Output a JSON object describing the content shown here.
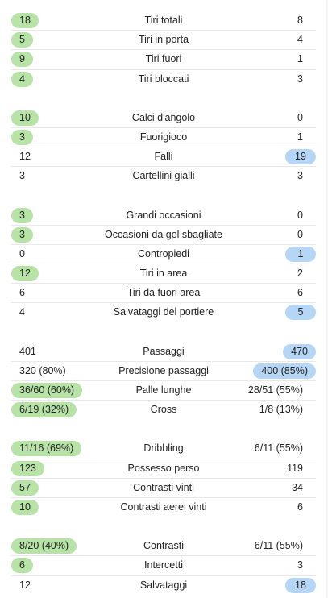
{
  "colors": {
    "home_highlight": "#b7e3a7",
    "away_highlight": "#b5d6f5",
    "divider": "#e8e8e8"
  },
  "groups": [
    {
      "rows": [
        {
          "label": "Tiri totali",
          "home": "18",
          "away": "8",
          "leader": "home"
        },
        {
          "label": "Tiri in porta",
          "home": "5",
          "away": "4",
          "leader": "home"
        },
        {
          "label": "Tiri fuori",
          "home": "9",
          "away": "1",
          "leader": "home"
        },
        {
          "label": "Tiri bloccati",
          "home": "4",
          "away": "3",
          "leader": "home"
        }
      ]
    },
    {
      "rows": [
        {
          "label": "Calci d'angolo",
          "home": "10",
          "away": "0",
          "leader": "home"
        },
        {
          "label": "Fuorigioco",
          "home": "3",
          "away": "1",
          "leader": "home"
        },
        {
          "label": "Falli",
          "home": "12",
          "away": "19",
          "leader": "away"
        },
        {
          "label": "Cartellini gialli",
          "home": "3",
          "away": "3",
          "leader": "none"
        }
      ]
    },
    {
      "rows": [
        {
          "label": "Grandi occasioni",
          "home": "3",
          "away": "0",
          "leader": "home"
        },
        {
          "label": "Occasioni da gol sbagliate",
          "home": "3",
          "away": "0",
          "leader": "home"
        },
        {
          "label": "Contropiedi",
          "home": "0",
          "away": "1",
          "leader": "away"
        },
        {
          "label": "Tiri in area",
          "home": "12",
          "away": "2",
          "leader": "home"
        },
        {
          "label": "Tiri da fuori area",
          "home": "6",
          "away": "6",
          "leader": "none"
        },
        {
          "label": "Salvataggi del portiere",
          "home": "4",
          "away": "5",
          "leader": "away"
        }
      ]
    },
    {
      "rows": [
        {
          "label": "Passaggi",
          "home": "401",
          "away": "470",
          "leader": "away"
        },
        {
          "label": "Precisione passaggi",
          "home": "320 (80%)",
          "away": "400 (85%)",
          "leader": "away"
        },
        {
          "label": "Palle lunghe",
          "home": "36/60 (60%)",
          "away": "28/51 (55%)",
          "leader": "home"
        },
        {
          "label": "Cross",
          "home": "6/19 (32%)",
          "away": "1/8 (13%)",
          "leader": "home"
        }
      ]
    },
    {
      "rows": [
        {
          "label": "Dribbling",
          "home": "11/16 (69%)",
          "away": "6/11 (55%)",
          "leader": "home"
        },
        {
          "label": "Possesso perso",
          "home": "123",
          "away": "119",
          "leader": "home"
        },
        {
          "label": "Contrasti vinti",
          "home": "57",
          "away": "34",
          "leader": "home"
        },
        {
          "label": "Contrasti aerei vinti",
          "home": "10",
          "away": "6",
          "leader": "home"
        }
      ]
    },
    {
      "rows": [
        {
          "label": "Contrasti",
          "home": "8/20 (40%)",
          "away": "6/11 (55%)",
          "leader": "home"
        },
        {
          "label": "Intercetti",
          "home": "6",
          "away": "3",
          "leader": "home"
        },
        {
          "label": "Salvataggi",
          "home": "12",
          "away": "18",
          "leader": "away"
        }
      ]
    }
  ]
}
